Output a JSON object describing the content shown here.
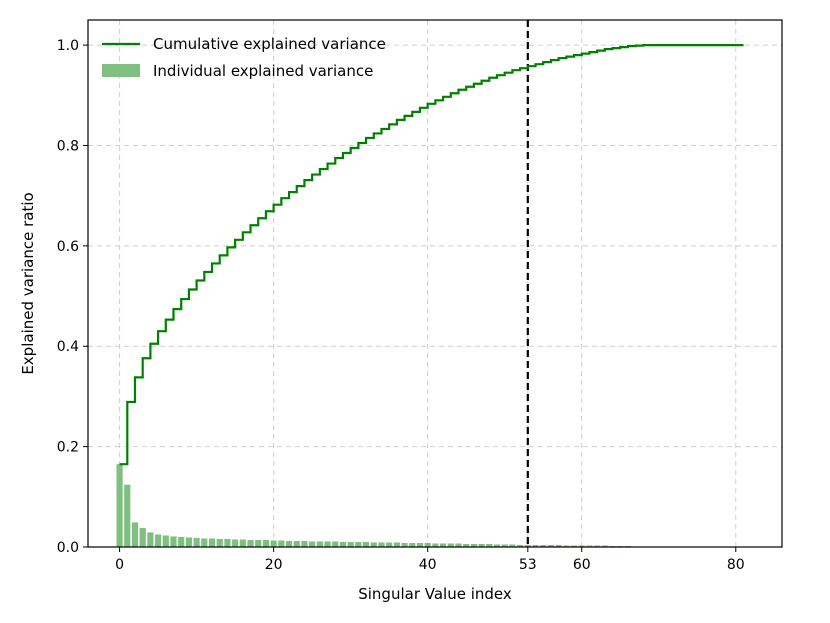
{
  "chart_data": {
    "type": "bar+step-line",
    "xlabel": "Singular Value index",
    "ylabel": "Explained variance ratio",
    "xlim": [
      -4.1,
      86.0
    ],
    "ylim": [
      0.0,
      1.05
    ],
    "xticks": [
      0,
      20,
      40,
      53,
      60,
      80
    ],
    "yticks": [
      0.0,
      0.2,
      0.4,
      0.6,
      0.8,
      1.0
    ],
    "ytick_format": "0.1f",
    "grid": true,
    "legend_position": "top-left",
    "vline": {
      "x": 53,
      "style": "dashed",
      "color": "#000000"
    },
    "colors": {
      "cumulative": "#008000",
      "individual": "#7fbf7f"
    },
    "series": [
      {
        "name": "Cumulative explained variance",
        "kind": "step",
        "x_start": 0,
        "values": [
          0.165,
          0.289,
          0.338,
          0.376,
          0.405,
          0.43,
          0.453,
          0.474,
          0.494,
          0.513,
          0.531,
          0.548,
          0.565,
          0.581,
          0.597,
          0.612,
          0.627,
          0.641,
          0.655,
          0.669,
          0.682,
          0.695,
          0.707,
          0.719,
          0.731,
          0.742,
          0.753,
          0.764,
          0.775,
          0.785,
          0.795,
          0.805,
          0.815,
          0.824,
          0.833,
          0.842,
          0.851,
          0.859,
          0.867,
          0.875,
          0.883,
          0.89,
          0.897,
          0.904,
          0.911,
          0.917,
          0.923,
          0.929,
          0.935,
          0.94,
          0.945,
          0.95,
          0.954,
          0.958,
          0.962,
          0.966,
          0.97,
          0.974,
          0.977,
          0.98,
          0.983,
          0.986,
          0.989,
          0.992,
          0.994,
          0.996,
          0.998,
          0.999,
          1.0,
          1.0,
          1.0,
          1.0,
          1.0,
          1.0,
          1.0,
          1.0,
          1.0,
          1.0,
          1.0,
          1.0,
          1.0,
          1.0
        ]
      },
      {
        "name": "Individual explained variance",
        "kind": "bar",
        "x_start": 0,
        "values": [
          0.165,
          0.124,
          0.049,
          0.038,
          0.029,
          0.025,
          0.023,
          0.021,
          0.02,
          0.019,
          0.018,
          0.017,
          0.017,
          0.016,
          0.016,
          0.015,
          0.015,
          0.014,
          0.014,
          0.014,
          0.013,
          0.013,
          0.012,
          0.012,
          0.012,
          0.011,
          0.011,
          0.011,
          0.011,
          0.01,
          0.01,
          0.01,
          0.01,
          0.009,
          0.009,
          0.009,
          0.009,
          0.008,
          0.008,
          0.008,
          0.008,
          0.007,
          0.007,
          0.007,
          0.007,
          0.006,
          0.006,
          0.006,
          0.006,
          0.005,
          0.005,
          0.005,
          0.004,
          0.004,
          0.004,
          0.004,
          0.004,
          0.004,
          0.003,
          0.003,
          0.003,
          0.003,
          0.003,
          0.003,
          0.002,
          0.002,
          0.002,
          0.001,
          0.001,
          0.0,
          0.0,
          0.0,
          0.0,
          0.0,
          0.0,
          0.0,
          0.0,
          0.0,
          0.0,
          0.0,
          0.0,
          0.0
        ]
      }
    ]
  }
}
